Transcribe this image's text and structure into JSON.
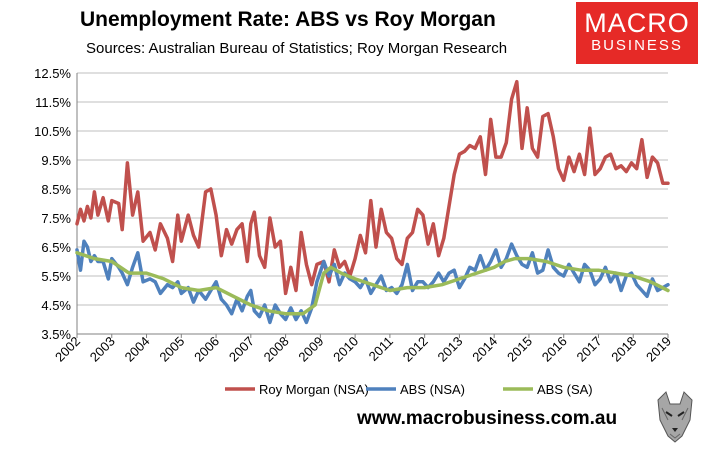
{
  "header": {
    "title": "Unemployment Rate: ABS vs Roy Morgan",
    "subtitle": "Sources: Australian Bureau of Statistics; Roy Morgan Research"
  },
  "logo": {
    "line1": "MACRO",
    "line2": "BUSINESS"
  },
  "footer": {
    "website": "www.macrobusiness.com.au"
  },
  "colors": {
    "roy_morgan": "#c0504d",
    "abs_nsa": "#4f81bd",
    "abs_sa": "#9bbb59",
    "grid": "#bfbfbf"
  },
  "chart_data": {
    "type": "line",
    "title": "Unemployment Rate: ABS vs Roy Morgan",
    "xlabel": "",
    "ylabel": "",
    "xlim": [
      2002,
      2019
    ],
    "ylim": [
      3.5,
      12.5
    ],
    "yticks": [
      3.5,
      4.5,
      5.5,
      6.5,
      7.5,
      8.5,
      9.5,
      10.5,
      11.5,
      12.5
    ],
    "ytick_labels": [
      "3.5%",
      "4.5%",
      "5.5%",
      "6.5%",
      "7.5%",
      "8.5%",
      "9.5%",
      "10.5%",
      "11.5%",
      "12.5%"
    ],
    "xtick_labels": [
      "2002",
      "2003",
      "2004",
      "2005",
      "2006",
      "2007",
      "2008",
      "2009",
      "2010",
      "2011",
      "2012",
      "2013",
      "2014",
      "2015",
      "2016",
      "2017",
      "2018",
      "2019"
    ],
    "grid": true,
    "legend_position": "bottom",
    "series": [
      {
        "name": "Roy Morgan (NSA)",
        "x": [
          2002.0,
          2002.1,
          2002.2,
          2002.3,
          2002.4,
          2002.5,
          2002.6,
          2002.75,
          2002.9,
          2003.0,
          2003.2,
          2003.3,
          2003.45,
          2003.6,
          2003.75,
          2003.9,
          2004.1,
          2004.25,
          2004.4,
          2004.6,
          2004.75,
          2004.9,
          2005.0,
          2005.2,
          2005.35,
          2005.5,
          2005.7,
          2005.85,
          2006.0,
          2006.15,
          2006.3,
          2006.45,
          2006.6,
          2006.75,
          2006.9,
          2007.0,
          2007.1,
          2007.25,
          2007.4,
          2007.55,
          2007.7,
          2007.85,
          2008.0,
          2008.15,
          2008.3,
          2008.45,
          2008.6,
          2008.75,
          2008.9,
          2009.1,
          2009.25,
          2009.4,
          2009.55,
          2009.7,
          2009.85,
          2010.0,
          2010.15,
          2010.3,
          2010.45,
          2010.6,
          2010.75,
          2010.9,
          2011.05,
          2011.2,
          2011.35,
          2011.5,
          2011.65,
          2011.8,
          2011.95,
          2012.1,
          2012.25,
          2012.4,
          2012.55,
          2012.7,
          2012.85,
          2013.0,
          2013.15,
          2013.3,
          2013.45,
          2013.6,
          2013.75,
          2013.9,
          2014.05,
          2014.2,
          2014.35,
          2014.5,
          2014.65,
          2014.8,
          2014.95,
          2015.1,
          2015.25,
          2015.4,
          2015.55,
          2015.7,
          2015.85,
          2016.0,
          2016.15,
          2016.3,
          2016.45,
          2016.6,
          2016.75,
          2016.9,
          2017.05,
          2017.2,
          2017.35,
          2017.5,
          2017.65,
          2017.8,
          2017.95,
          2018.1,
          2018.25,
          2018.4,
          2018.55,
          2018.7,
          2018.85,
          2019.0
        ],
        "values": [
          7.3,
          7.8,
          7.4,
          7.9,
          7.5,
          8.4,
          7.6,
          8.2,
          7.4,
          8.1,
          8.0,
          7.1,
          9.4,
          7.6,
          8.4,
          6.7,
          7.0,
          6.4,
          7.3,
          6.8,
          6.0,
          7.6,
          6.7,
          7.6,
          6.9,
          6.5,
          8.4,
          8.5,
          7.6,
          6.2,
          7.1,
          6.6,
          7.1,
          7.3,
          6.0,
          7.3,
          7.7,
          6.2,
          5.8,
          7.5,
          6.5,
          6.7,
          4.9,
          5.8,
          5.0,
          7.0,
          5.9,
          5.2,
          5.9,
          6.0,
          5.3,
          6.4,
          5.8,
          6.0,
          5.5,
          6.1,
          6.9,
          6.3,
          8.1,
          6.5,
          7.8,
          7.0,
          6.8,
          6.1,
          5.9,
          6.8,
          7.0,
          7.8,
          7.6,
          6.6,
          7.3,
          6.2,
          6.8,
          7.9,
          9.0,
          9.7,
          9.8,
          10.0,
          9.9,
          10.3,
          9.0,
          10.9,
          9.6,
          9.6,
          10.1,
          11.6,
          12.2,
          9.9,
          11.3,
          9.9,
          9.6,
          11.0,
          11.1,
          10.3,
          9.2,
          8.8,
          9.6,
          9.1,
          9.7,
          9.0,
          10.6,
          9.0,
          9.2,
          9.6,
          9.7,
          9.2,
          9.3,
          9.1,
          9.4,
          9.2,
          10.2,
          8.9,
          9.6,
          9.4,
          8.7,
          8.7
        ]
      },
      {
        "name": "ABS (NSA)",
        "x": [
          2002.0,
          2002.1,
          2002.2,
          2002.3,
          2002.4,
          2002.5,
          2002.6,
          2002.75,
          2002.9,
          2003.0,
          2003.2,
          2003.3,
          2003.45,
          2003.6,
          2003.75,
          2003.9,
          2004.1,
          2004.25,
          2004.4,
          2004.6,
          2004.75,
          2004.9,
          2005.0,
          2005.2,
          2005.35,
          2005.5,
          2005.7,
          2005.85,
          2006.0,
          2006.15,
          2006.3,
          2006.45,
          2006.6,
          2006.75,
          2006.9,
          2007.0,
          2007.1,
          2007.25,
          2007.4,
          2007.55,
          2007.7,
          2007.85,
          2008.0,
          2008.15,
          2008.3,
          2008.45,
          2008.6,
          2008.75,
          2008.9,
          2009.1,
          2009.25,
          2009.4,
          2009.55,
          2009.7,
          2009.85,
          2010.0,
          2010.15,
          2010.3,
          2010.45,
          2010.6,
          2010.75,
          2010.9,
          2011.05,
          2011.2,
          2011.35,
          2011.5,
          2011.65,
          2011.8,
          2011.95,
          2012.1,
          2012.25,
          2012.4,
          2012.55,
          2012.7,
          2012.85,
          2013.0,
          2013.15,
          2013.3,
          2013.45,
          2013.6,
          2013.75,
          2013.9,
          2014.05,
          2014.2,
          2014.35,
          2014.5,
          2014.65,
          2014.8,
          2014.95,
          2015.1,
          2015.25,
          2015.4,
          2015.55,
          2015.7,
          2015.85,
          2016.0,
          2016.15,
          2016.3,
          2016.45,
          2016.6,
          2016.75,
          2016.9,
          2017.05,
          2017.2,
          2017.35,
          2017.5,
          2017.65,
          2017.8,
          2017.95,
          2018.1,
          2018.25,
          2018.4,
          2018.55,
          2018.7,
          2018.85,
          2019.0
        ],
        "values": [
          6.4,
          5.7,
          6.7,
          6.5,
          6.0,
          6.2,
          6.0,
          6.0,
          5.4,
          6.1,
          5.8,
          5.6,
          5.2,
          5.8,
          6.3,
          5.3,
          5.4,
          5.3,
          4.9,
          5.2,
          5.1,
          5.3,
          4.9,
          5.1,
          4.6,
          5.0,
          4.7,
          5.0,
          5.3,
          4.7,
          4.5,
          4.2,
          4.7,
          4.3,
          4.8,
          5.0,
          4.3,
          4.1,
          4.5,
          3.9,
          4.5,
          4.2,
          4.0,
          4.4,
          4.0,
          4.3,
          3.9,
          4.4,
          5.3,
          6.0,
          5.5,
          5.9,
          5.2,
          5.6,
          5.4,
          5.3,
          5.1,
          5.4,
          4.9,
          5.2,
          5.5,
          5.0,
          5.1,
          4.9,
          5.2,
          5.9,
          5.0,
          5.3,
          5.3,
          5.1,
          5.3,
          5.6,
          5.3,
          5.6,
          5.7,
          5.1,
          5.4,
          5.8,
          5.7,
          6.2,
          5.7,
          6.0,
          6.4,
          5.8,
          6.1,
          6.6,
          6.2,
          5.9,
          5.8,
          6.3,
          5.6,
          5.7,
          6.4,
          5.8,
          5.6,
          5.5,
          5.9,
          5.6,
          5.3,
          5.9,
          5.7,
          5.2,
          5.4,
          5.8,
          5.3,
          5.6,
          5.0,
          5.5,
          5.6,
          5.2,
          5.0,
          4.8,
          5.4,
          5.0,
          5.1,
          5.2
        ]
      },
      {
        "name": "ABS (SA)",
        "x": [
          2002.0,
          2002.5,
          2003.0,
          2003.5,
          2004.0,
          2004.5,
          2005.0,
          2005.5,
          2006.0,
          2006.5,
          2007.0,
          2007.5,
          2008.0,
          2008.5,
          2008.85,
          2009.1,
          2009.3,
          2009.6,
          2010.0,
          2010.5,
          2011.0,
          2011.5,
          2012.0,
          2012.5,
          2013.0,
          2013.5,
          2014.0,
          2014.3,
          2014.6,
          2015.0,
          2015.5,
          2016.0,
          2016.5,
          2017.0,
          2017.5,
          2018.0,
          2018.5,
          2019.0
        ],
        "values": [
          6.3,
          6.1,
          6.0,
          5.6,
          5.6,
          5.4,
          5.1,
          5.0,
          5.1,
          4.8,
          4.5,
          4.3,
          4.2,
          4.2,
          4.5,
          5.6,
          5.8,
          5.6,
          5.4,
          5.2,
          5.0,
          5.1,
          5.1,
          5.2,
          5.4,
          5.6,
          5.8,
          6.0,
          6.1,
          6.1,
          6.0,
          5.8,
          5.7,
          5.7,
          5.6,
          5.5,
          5.3,
          5.0
        ]
      }
    ]
  }
}
